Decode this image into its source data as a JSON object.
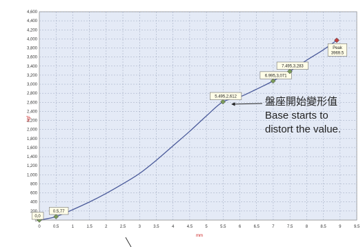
{
  "chart_data": {
    "type": "line",
    "xlabel": "mm",
    "ylabel": "kgf",
    "xlim": [
      0,
      9.5
    ],
    "ylim": [
      0,
      4600
    ],
    "x_ticks": [
      "0",
      "0.5",
      "1",
      "1.5",
      "2",
      "2.5",
      "3",
      "3.5",
      "4",
      "4.5",
      "5",
      "5.5",
      "6",
      "6.5",
      "7",
      "7.5",
      "8",
      "8.5",
      "9",
      "9.5"
    ],
    "y_ticks": [
      "0",
      "200",
      "400",
      "600",
      "800",
      "1,000",
      "1,200",
      "1,400",
      "1,600",
      "1,800",
      "2,000",
      "2,200",
      "2,400",
      "2,600",
      "2,800",
      "3,000",
      "3,200",
      "3,400",
      "3,600",
      "3,800",
      "4,000",
      "4,200",
      "4,400",
      "4,600"
    ],
    "grid": true,
    "colors": {
      "line": "#4a5a9a",
      "plot_bg": "#e4eaf6",
      "grid": "#9aa4bc",
      "marker": "#7a9a5a",
      "peak_marker": "#c04040",
      "axis_title": "#cc2222"
    },
    "series": [
      {
        "x": [
          0,
          0.5,
          1.0,
          1.5,
          2.0,
          2.5,
          3.0,
          3.5,
          4.0,
          4.5,
          5.0,
          5.495,
          6.0,
          6.5,
          6.995,
          7.495,
          8.0,
          8.5,
          8.9
        ],
        "y": [
          0,
          77,
          230,
          400,
          590,
          800,
          1030,
          1320,
          1640,
          1960,
          2300,
          2612,
          2720,
          2890,
          3071,
          3283,
          3530,
          3760,
          3970
        ]
      }
    ],
    "annotations": [
      {
        "x": 0,
        "y": 0,
        "text": "0,0"
      },
      {
        "x": 0.5,
        "y": 77,
        "text": "0.5,77"
      },
      {
        "x": 5.495,
        "y": 2612,
        "text": "5.495,2,612"
      },
      {
        "x": 6.995,
        "y": 3071,
        "text": "6.995,3,071"
      },
      {
        "x": 7.495,
        "y": 3283,
        "text": "7.495,3,283"
      },
      {
        "x": 8.9,
        "y": 3970,
        "text": "Peak 3969.5",
        "lines": [
          "Peak",
          "3969.5"
        ]
      }
    ]
  },
  "note": {
    "lines": [
      "盤座開始變形值",
      "Base starts to",
      "distort the value."
    ]
  }
}
